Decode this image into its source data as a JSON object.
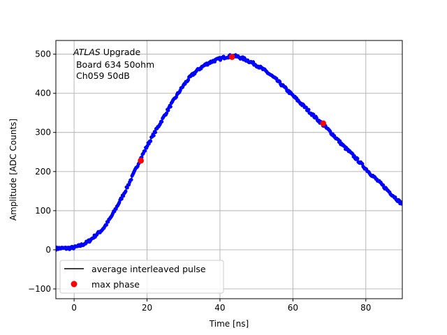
{
  "chart_data": {
    "type": "scatter",
    "xlabel": "Time [ns]",
    "ylabel": "Amplitude [ADC Counts]",
    "xlim": [
      -5,
      90
    ],
    "ylim": [
      -125,
      535
    ],
    "x_ticks": [
      0,
      20,
      40,
      60,
      80
    ],
    "y_ticks": [
      -100,
      0,
      100,
      200,
      300,
      400,
      500
    ],
    "x_tick_labels": [
      "0",
      "20",
      "40",
      "60",
      "80"
    ],
    "y_tick_labels": [
      "−100",
      "0",
      "100",
      "200",
      "300",
      "400",
      "500"
    ],
    "grid": true,
    "annotation": {
      "line1_italic": "ATLAS",
      "line1_rest": " Upgrade",
      "line2": " Board 634 50ohm",
      "line3": " Ch059 50dB"
    },
    "legend": {
      "location": "lower left",
      "entries": [
        {
          "label": "average interleaved pulse",
          "marker": "line",
          "color": "#000000"
        },
        {
          "label": "max phase",
          "marker": "circle",
          "color": "#ff0000"
        }
      ]
    },
    "series": [
      {
        "name": "average interleaved pulse",
        "style": "dots",
        "color": "#0000ff",
        "x": [
          -5,
          -4,
          -2,
          0,
          2,
          4,
          6,
          8,
          10,
          12,
          14,
          16,
          18,
          20,
          22,
          24,
          26,
          28,
          30,
          32,
          34,
          36,
          38,
          40,
          42,
          44,
          46,
          48,
          50,
          52,
          54,
          56,
          58,
          60,
          62,
          64,
          66,
          68,
          70,
          72,
          74,
          76,
          78,
          80,
          82,
          84,
          86,
          88,
          90
        ],
        "y": [
          3,
          4,
          4,
          6,
          12,
          22,
          38,
          55,
          82,
          115,
          150,
          188,
          228,
          265,
          298,
          330,
          362,
          392,
          420,
          443,
          460,
          473,
          482,
          488,
          494,
          495,
          490,
          482,
          472,
          460,
          446,
          430,
          412,
          394,
          376,
          358,
          340,
          322,
          304,
          284,
          264,
          246,
          227,
          207,
          188,
          170,
          152,
          134,
          118
        ]
      },
      {
        "name": "max phase",
        "style": "markers",
        "color": "#ff0000",
        "x": [
          18.3,
          43.3,
          68.3
        ],
        "y": [
          228,
          493,
          323
        ]
      }
    ]
  },
  "colors": {
    "data": "#0000ff",
    "max_phase": "#ff0000",
    "grid": "#b0b0b0"
  }
}
